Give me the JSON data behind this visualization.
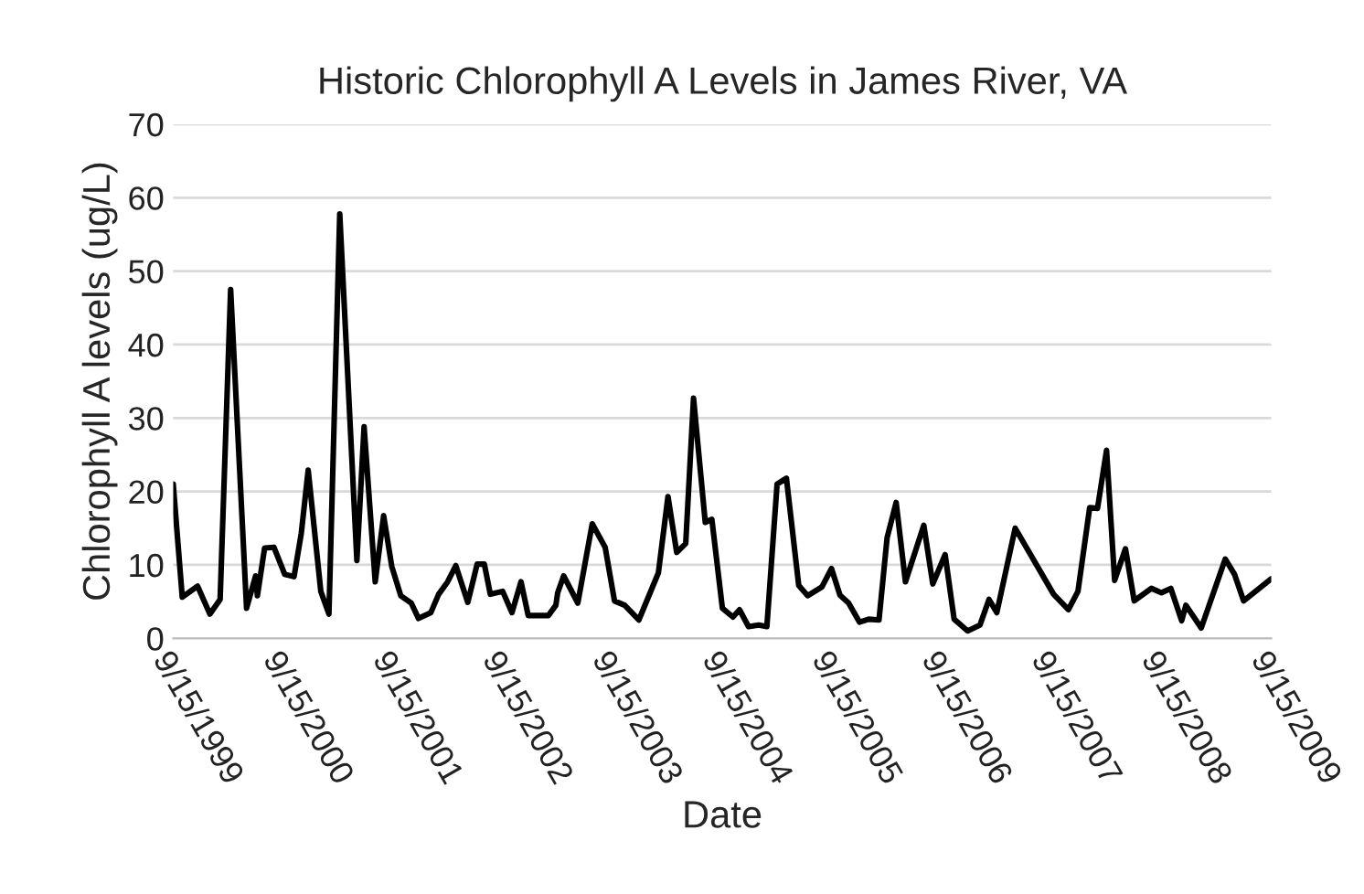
{
  "chart_data": {
    "type": "line",
    "title": "Historic Chlorophyll A Levels in James River, VA",
    "xlabel": "Date",
    "ylabel": "Chlorophyll A levels (ug/L)",
    "x": [
      "1999-09-15",
      "1999-10-15",
      "1999-12-05",
      "2000-01-15",
      "2000-02-18",
      "2000-03-24",
      "2000-05-16",
      "2000-06-15",
      "2000-06-21",
      "2000-07-15",
      "2000-08-15",
      "2000-09-20",
      "2000-10-21",
      "2000-11-14",
      "2000-12-07",
      "2001-01-18",
      "2001-02-14",
      "2001-03-22",
      "2001-05-18",
      "2001-06-11",
      "2001-07-18",
      "2001-08-15",
      "2001-09-11",
      "2001-10-11",
      "2001-11-15",
      "2001-12-09",
      "2002-01-19",
      "2002-02-14",
      "2002-03-16",
      "2002-04-12",
      "2002-05-22",
      "2002-06-22",
      "2002-07-16",
      "2002-08-05",
      "2002-09-15",
      "2002-10-16",
      "2002-11-15",
      "2002-12-09",
      "2003-02-14",
      "2003-03-11",
      "2003-03-17",
      "2003-04-06",
      "2003-05-23",
      "2003-07-10",
      "2003-08-22",
      "2003-09-22",
      "2003-10-26",
      "2003-12-12",
      "2004-02-15",
      "2004-03-18",
      "2004-04-16",
      "2004-05-16",
      "2004-06-11",
      "2004-07-20",
      "2004-08-11",
      "2004-09-15",
      "2004-10-20",
      "2004-11-11",
      "2004-12-11",
      "2005-01-14",
      "2005-02-10",
      "2005-03-16",
      "2005-04-16",
      "2005-05-27",
      "2005-06-26",
      "2005-08-12",
      "2005-09-13",
      "2005-10-11",
      "2005-11-09",
      "2005-12-15",
      "2006-01-15",
      "2006-02-18",
      "2006-03-17",
      "2006-04-16",
      "2006-05-17",
      "2006-07-17",
      "2006-08-16",
      "2006-09-26",
      "2006-10-26",
      "2006-12-10",
      "2007-01-20",
      "2007-02-19",
      "2007-03-17",
      "2007-05-17",
      "2007-09-22",
      "2007-11-10",
      "2007-12-12",
      "2008-01-20",
      "2008-02-15",
      "2008-03-16",
      "2008-04-12",
      "2008-05-18",
      "2008-06-16",
      "2008-08-12",
      "2008-09-15",
      "2008-10-16",
      "2008-11-21",
      "2008-12-05",
      "2009-01-25",
      "2009-04-15",
      "2009-05-16",
      "2009-06-15",
      "2009-09-15"
    ],
    "series": [
      {
        "color": "#000000",
        "values": [
          21,
          5.6,
          7.1,
          3.3,
          5.3,
          47.5,
          4.1,
          8.5,
          5.8,
          12.3,
          12.4,
          8.7,
          8.4,
          14.3,
          22.9,
          6.4,
          3.3,
          57.8,
          10.6,
          28.8,
          7.7,
          16.7,
          9.8,
          5.8,
          4.8,
          2.7,
          3.5,
          6,
          7.7,
          9.9,
          4.9,
          10.1,
          10.1,
          6,
          6.4,
          3.5,
          7.7,
          3.1,
          3.1,
          4.5,
          6.2,
          8.5,
          4.8,
          15.6,
          12.4,
          5.1,
          4.5,
          2.5,
          8.9,
          19.3,
          11.7,
          12.9,
          32.7,
          15.8,
          16.2,
          4.1,
          2.9,
          3.9,
          1.6,
          1.8,
          1.6,
          21,
          21.8,
          7.2,
          5.8,
          7,
          9.5,
          5.9,
          4.8,
          2.2,
          2.6,
          2.5,
          13.7,
          18.5,
          7.7,
          15.4,
          7.4,
          11.4,
          2.6,
          1,
          1.8,
          5.3,
          3.5,
          15,
          6,
          3.9,
          6.4,
          17.8,
          17.7,
          25.6,
          7.9,
          12.2,
          5.1,
          6.8,
          6.2,
          6.8,
          2.4,
          4.5,
          1.4,
          10.8,
          8.7,
          5.1,
          8.1
        ]
      }
    ],
    "xlim": [
      "1999-09-15",
      "2009-09-15"
    ],
    "xticks": [
      {
        "value": "1999-09-15",
        "label": "9/15/1999"
      },
      {
        "value": "2000-09-15",
        "label": "9/15/2000"
      },
      {
        "value": "2001-09-15",
        "label": "9/15/2001"
      },
      {
        "value": "2002-09-15",
        "label": "9/15/2002"
      },
      {
        "value": "2003-09-15",
        "label": "9/15/2003"
      },
      {
        "value": "2004-09-15",
        "label": "9/15/2004"
      },
      {
        "value": "2005-09-15",
        "label": "9/15/2005"
      },
      {
        "value": "2006-09-15",
        "label": "9/15/2006"
      },
      {
        "value": "2007-09-15",
        "label": "9/15/2007"
      },
      {
        "value": "2008-09-15",
        "label": "9/15/2008"
      },
      {
        "value": "2009-09-15",
        "label": "9/15/2009"
      }
    ],
    "ylim": [
      0,
      70
    ],
    "yticks": [
      0,
      10,
      20,
      30,
      40,
      50,
      60,
      70
    ],
    "grid": "y",
    "marker": "none",
    "line_style": "solid"
  }
}
